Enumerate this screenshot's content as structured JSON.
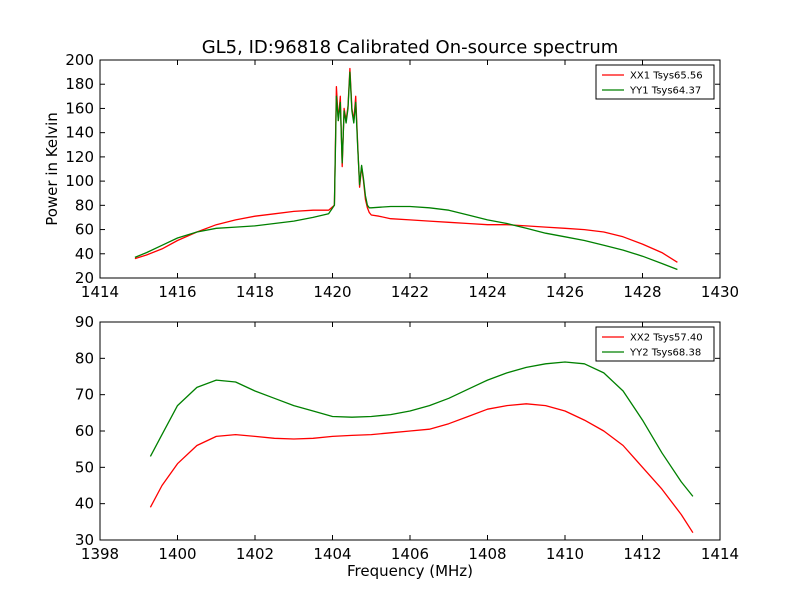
{
  "figure": {
    "title": "GL5, ID:96818 Calibrated On-source spectrum"
  },
  "colors": {
    "red": "#ff0000",
    "green": "#008000"
  },
  "chart_data": [
    {
      "type": "line",
      "title": "GL5, ID:96818 Calibrated On-source spectrum",
      "xlabel": "",
      "ylabel": "Power in Kelvin",
      "xlim": [
        1414,
        1430
      ],
      "ylim": [
        20,
        200
      ],
      "xticks": [
        1414,
        1416,
        1418,
        1420,
        1422,
        1424,
        1426,
        1428,
        1430
      ],
      "yticks": [
        20,
        40,
        60,
        80,
        100,
        120,
        140,
        160,
        180,
        200
      ],
      "legend_position": "top-right",
      "series": [
        {
          "name": "XX1 Tsys65.56",
          "color": "#ff0000",
          "x": [
            1414.9,
            1415.2,
            1415.6,
            1416.0,
            1416.5,
            1417.0,
            1417.5,
            1418.0,
            1418.5,
            1419.0,
            1419.5,
            1419.9,
            1420.05,
            1420.1,
            1420.15,
            1420.2,
            1420.25,
            1420.3,
            1420.35,
            1420.4,
            1420.45,
            1420.5,
            1420.55,
            1420.6,
            1420.65,
            1420.7,
            1420.75,
            1420.8,
            1420.85,
            1420.9,
            1420.95,
            1421.0,
            1421.2,
            1421.5,
            1422.0,
            1422.5,
            1423.0,
            1423.5,
            1424.0,
            1424.5,
            1425.0,
            1425.5,
            1426.0,
            1426.5,
            1427.0,
            1427.5,
            1428.0,
            1428.5,
            1428.9
          ],
          "y": [
            36,
            39,
            44,
            51,
            58,
            64,
            68,
            71,
            73,
            75,
            76,
            76,
            80,
            178,
            150,
            170,
            112,
            160,
            150,
            162,
            193,
            160,
            150,
            170,
            130,
            95,
            112,
            100,
            85,
            78,
            74,
            72,
            71,
            69,
            68,
            67,
            66,
            65,
            64,
            64,
            63,
            62,
            61,
            60,
            58,
            54,
            48,
            41,
            33
          ]
        },
        {
          "name": "YY1 Tsys64.37",
          "color": "#008000",
          "x": [
            1414.9,
            1415.2,
            1415.6,
            1416.0,
            1416.5,
            1417.0,
            1417.5,
            1418.0,
            1418.5,
            1419.0,
            1419.5,
            1419.9,
            1420.05,
            1420.1,
            1420.15,
            1420.2,
            1420.25,
            1420.3,
            1420.35,
            1420.4,
            1420.45,
            1420.5,
            1420.55,
            1420.6,
            1420.65,
            1420.7,
            1420.75,
            1420.8,
            1420.85,
            1420.9,
            1420.95,
            1421.0,
            1421.5,
            1422.0,
            1422.5,
            1423.0,
            1423.5,
            1424.0,
            1424.5,
            1425.0,
            1425.5,
            1426.0,
            1426.5,
            1427.0,
            1427.5,
            1428.0,
            1428.5,
            1428.9
          ],
          "y": [
            37,
            41,
            47,
            53,
            58,
            61,
            62,
            63,
            65,
            67,
            70,
            73,
            80,
            170,
            150,
            165,
            115,
            158,
            148,
            160,
            190,
            158,
            148,
            165,
            128,
            97,
            113,
            102,
            88,
            80,
            78,
            78,
            79,
            79,
            78,
            76,
            72,
            68,
            65,
            61,
            57,
            54,
            51,
            47,
            43,
            38,
            32,
            27
          ]
        }
      ]
    },
    {
      "type": "line",
      "title": "",
      "xlabel": "Frequency (MHz)",
      "ylabel": "",
      "xlim": [
        1398,
        1414
      ],
      "ylim": [
        30,
        90
      ],
      "xticks": [
        1398,
        1400,
        1402,
        1404,
        1406,
        1408,
        1410,
        1412,
        1414
      ],
      "yticks": [
        30,
        40,
        50,
        60,
        70,
        80,
        90
      ],
      "legend_position": "top-right",
      "series": [
        {
          "name": "XX2 Tsys57.40",
          "color": "#ff0000",
          "x": [
            1399.3,
            1399.6,
            1400.0,
            1400.5,
            1401.0,
            1401.5,
            1402.0,
            1402.5,
            1403.0,
            1403.5,
            1404.0,
            1404.5,
            1405.0,
            1405.5,
            1406.0,
            1406.5,
            1407.0,
            1407.5,
            1408.0,
            1408.5,
            1409.0,
            1409.5,
            1410.0,
            1410.5,
            1411.0,
            1411.5,
            1412.0,
            1412.5,
            1413.0,
            1413.3
          ],
          "y": [
            39,
            45,
            51,
            56,
            58.5,
            59,
            58.5,
            58,
            57.8,
            58,
            58.5,
            58.8,
            59,
            59.5,
            60,
            60.5,
            62,
            64,
            66,
            67,
            67.5,
            67,
            65.5,
            63,
            60,
            56,
            50,
            44,
            37,
            32
          ]
        },
        {
          "name": "YY2 Tsys68.38",
          "color": "#008000",
          "x": [
            1399.3,
            1399.6,
            1400.0,
            1400.5,
            1401.0,
            1401.5,
            1402.0,
            1402.5,
            1403.0,
            1403.5,
            1404.0,
            1404.5,
            1405.0,
            1405.5,
            1406.0,
            1406.5,
            1407.0,
            1407.5,
            1408.0,
            1408.5,
            1409.0,
            1409.5,
            1410.0,
            1410.5,
            1411.0,
            1411.5,
            1412.0,
            1412.5,
            1413.0,
            1413.3
          ],
          "y": [
            53,
            59,
            67,
            72,
            74,
            73.5,
            71,
            69,
            67,
            65.5,
            64,
            63.8,
            64,
            64.5,
            65.5,
            67,
            69,
            71.5,
            74,
            76,
            77.5,
            78.5,
            79,
            78.5,
            76,
            71,
            63,
            54,
            46,
            42
          ]
        }
      ]
    }
  ]
}
